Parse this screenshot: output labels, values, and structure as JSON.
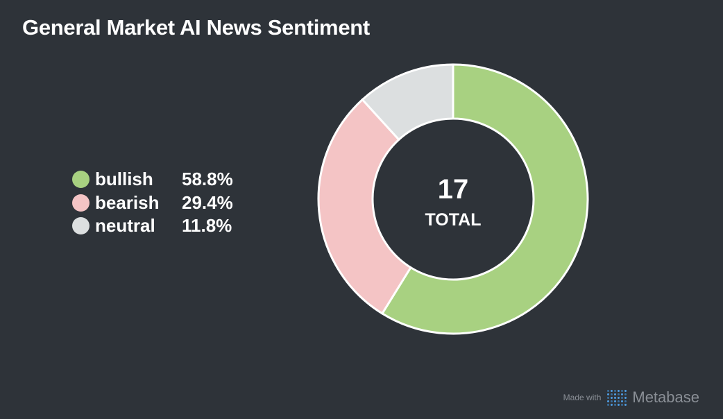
{
  "title": "General Market AI News Sentiment",
  "chart_data": {
    "type": "pie",
    "donut": true,
    "title": "General Market AI News Sentiment",
    "slices": [
      {
        "label": "bullish",
        "value": 10,
        "percent_label": "58.8%",
        "color": "#a8d181"
      },
      {
        "label": "bearish",
        "value": 5,
        "percent_label": "29.4%",
        "color": "#f4c4c5"
      },
      {
        "label": "neutral",
        "value": 2,
        "percent_label": "11.8%",
        "color": "#dcdfe0"
      }
    ],
    "total": "17",
    "total_label": "TOTAL",
    "legend_position": "left"
  },
  "footer": {
    "made_with": "Made with",
    "brand": "Metabase",
    "logo_icon": "metabase-logo-icon"
  },
  "colors": {
    "background": "#2e3339",
    "slice_border": "#ffffff"
  }
}
